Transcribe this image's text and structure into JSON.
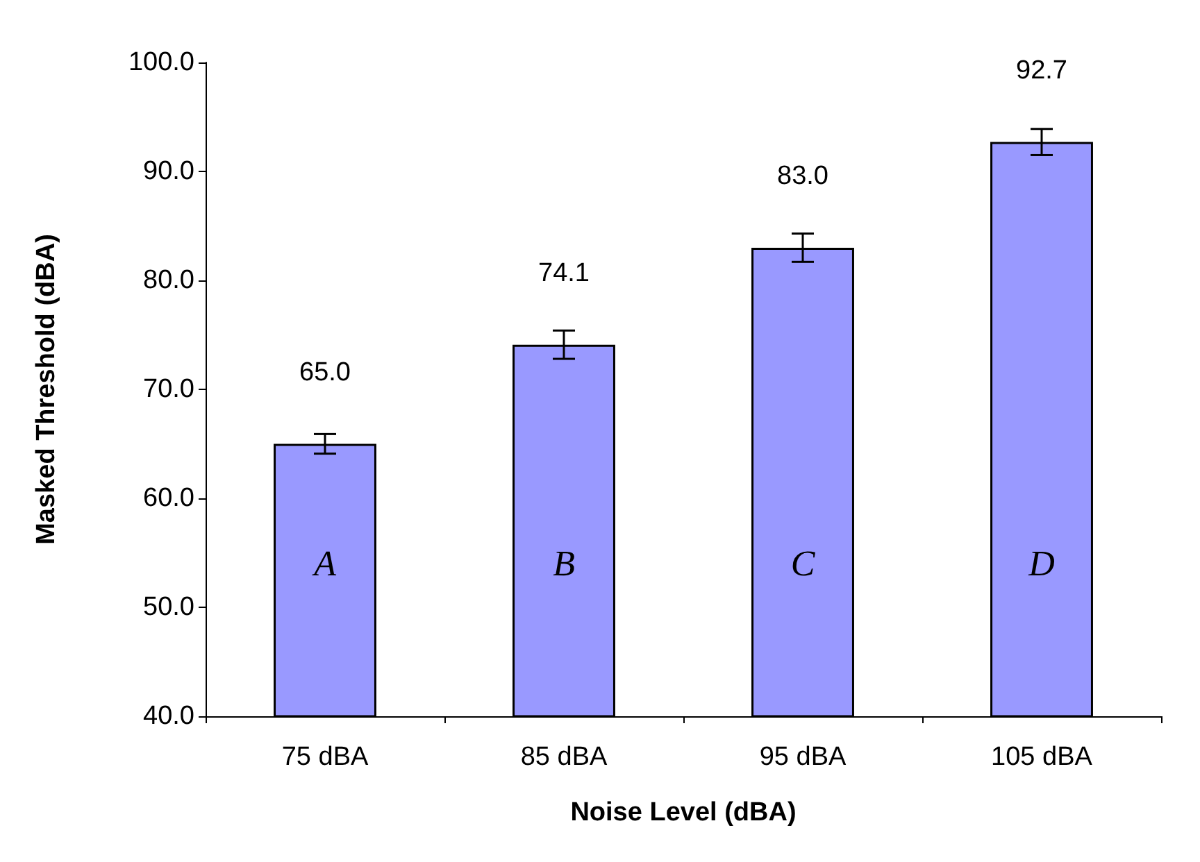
{
  "chart_data": {
    "type": "bar",
    "xlabel": "Noise Level (dBA)",
    "ylabel": "Masked Threshold (dBA)",
    "categories": [
      "75 dBA",
      "85 dBA",
      "95 dBA",
      "105 dBA"
    ],
    "values": [
      65.0,
      74.1,
      83.0,
      92.7
    ],
    "color": "#9999ff",
    "errors": [
      0.9,
      1.3,
      1.3,
      1.2
    ],
    "value_labels": [
      "65.0",
      "74.1",
      "83.0",
      "92.7"
    ],
    "ylim": [
      40,
      100
    ],
    "yticks": [
      {
        "value": 40,
        "label": "40.0"
      },
      {
        "value": 50,
        "label": "50.0"
      },
      {
        "value": 60,
        "label": "60.0"
      },
      {
        "value": 70,
        "label": "70.0"
      },
      {
        "value": 80,
        "label": "80.0"
      },
      {
        "value": 90,
        "label": "90.0"
      },
      {
        "value": 100,
        "label": "100.0"
      }
    ],
    "annotations": [
      "A",
      "B",
      "C",
      "D"
    ]
  }
}
